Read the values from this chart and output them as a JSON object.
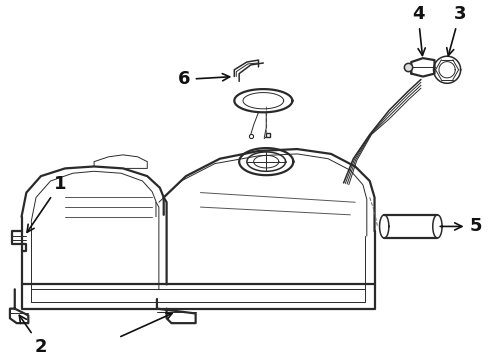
{
  "bg_color": "#ffffff",
  "line_color": "#2a2a2a",
  "label_color": "#111111",
  "font_size_labels": 13,
  "font_weight": "bold",
  "lw_main": 1.1,
  "lw_thick": 1.6,
  "lw_thin": 0.7
}
